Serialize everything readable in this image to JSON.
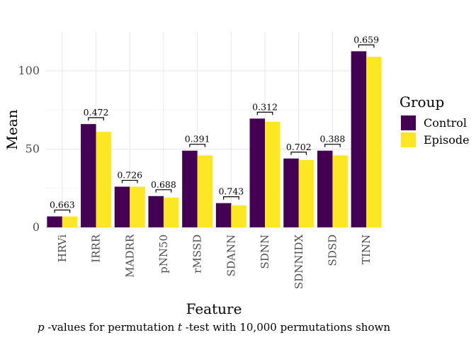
{
  "chart_data": {
    "type": "bar",
    "xlabel": "Feature",
    "ylabel": "Mean",
    "ylim": [
      0,
      125
    ],
    "yticks": [
      0,
      50,
      100
    ],
    "grid": true,
    "legend": {
      "title": "Group",
      "placement": "right"
    },
    "categories": [
      "HRVi",
      "IRRR",
      "MADRR",
      "pNN50",
      "rMSSD",
      "SDANN",
      "SDNN",
      "SDNNIDX",
      "SDSD",
      "TINN"
    ],
    "series": [
      {
        "name": "Control",
        "color": "#440154",
        "values": [
          7,
          66,
          26,
          20,
          49,
          15.5,
          69.5,
          44,
          49,
          112.5
        ]
      },
      {
        "name": "Episode",
        "color": "#FDE725",
        "values": [
          7,
          61,
          26,
          19,
          46,
          14,
          67.5,
          43,
          46,
          109
        ]
      }
    ],
    "annotations": [
      "0.663",
      "0.472",
      "0.726",
      "0.688",
      "0.391",
      "0.743",
      "0.312",
      "0.702",
      "0.388",
      "0.659"
    ],
    "caption": {
      "p": "p",
      "part1": " -values for permutation ",
      "t": "t",
      "part2": " -test with 10,000 permutations shown"
    }
  }
}
